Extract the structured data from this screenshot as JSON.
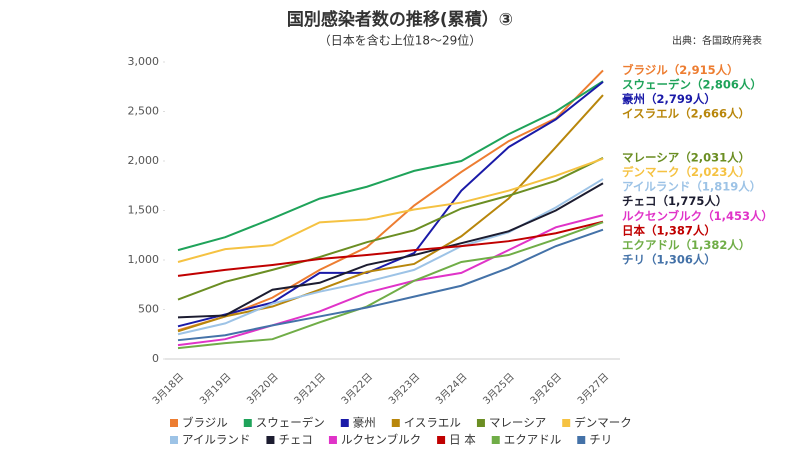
{
  "chart_data": {
    "type": "line",
    "title": "国別感染者数の推移(累積）③",
    "subtitle": "（日本を含む上位18～29位）",
    "source": "出典：各国政府発表",
    "categories": [
      "3月18日",
      "3月19日",
      "3月20日",
      "3月21日",
      "3月22日",
      "3月23日",
      "3月24日",
      "3月25日",
      "3月26日",
      "3月27日"
    ],
    "ylim": [
      0,
      3000
    ],
    "yticks": [
      0,
      500,
      {
        "value": 1000,
        "label": "1,000"
      },
      {
        "value": 1500,
        "label": "1,500"
      },
      {
        "value": 2000,
        "label": "2,000"
      },
      {
        "value": 2500,
        "label": "2,500"
      },
      {
        "value": 3000,
        "label": "3,000"
      }
    ],
    "grid": false,
    "series": [
      {
        "name": "ブラジル",
        "color": "#ed7d31",
        "end_label": "ブラジル（2,915人）",
        "values": [
          290,
          430,
          620,
          900,
          1130,
          1550,
          1890,
          2200,
          2430,
          2915
        ]
      },
      {
        "name": "スウェーデン",
        "color": "#1fa35a",
        "end_label": "スウェーデン（2,806人）",
        "values": [
          1100,
          1230,
          1420,
          1620,
          1740,
          1900,
          2000,
          2270,
          2500,
          2806
        ]
      },
      {
        "name": "豪州",
        "color": "#1a1aa8",
        "end_label": "豪州（2,799人）",
        "values": [
          330,
          450,
          570,
          870,
          870,
          1070,
          1700,
          2140,
          2420,
          2799
        ]
      },
      {
        "name": "イスラエル",
        "color": "#b8860b",
        "end_label": "イスラエル（2,666人）",
        "values": [
          280,
          430,
          530,
          700,
          880,
          960,
          1240,
          1620,
          2140,
          2666
        ]
      },
      {
        "name": "マレーシア",
        "color": "#6b8e23",
        "end_label": "マレーシア（2,031人）",
        "values": [
          600,
          780,
          900,
          1030,
          1180,
          1300,
          1520,
          1650,
          1800,
          2031
        ]
      },
      {
        "name": "デンマーク",
        "color": "#f5c242",
        "end_label": "デンマーク（2,023人）",
        "values": [
          980,
          1110,
          1150,
          1380,
          1410,
          1510,
          1580,
          1700,
          1850,
          2023
        ]
      },
      {
        "name": "アイルランド",
        "color": "#9dc3e6",
        "end_label": "アイルランド（1,819人）",
        "values": [
          250,
          360,
          560,
          680,
          780,
          900,
          1140,
          1280,
          1530,
          1819
        ]
      },
      {
        "name": "チェコ",
        "color": "#1c1c30",
        "end_label": "チェコ（1,775人）",
        "values": [
          420,
          440,
          700,
          770,
          950,
          1050,
          1170,
          1290,
          1500,
          1775
        ]
      },
      {
        "name": "ルクセンブルク",
        "color": "#e033c8",
        "end_label": "ルクセンブルク（1,453人）",
        "values": [
          140,
          200,
          340,
          480,
          670,
          790,
          870,
          1100,
          1330,
          1453
        ]
      },
      {
        "name": "日 本",
        "color": "#c00000",
        "end_label": "日本（1,387人）",
        "values": [
          840,
          900,
          950,
          1010,
          1050,
          1100,
          1140,
          1190,
          1270,
          1387
        ]
      },
      {
        "name": "エクアドル",
        "color": "#70ad47",
        "end_label": "エクアドル（1,382人）",
        "values": [
          110,
          160,
          200,
          370,
          530,
          790,
          980,
          1050,
          1210,
          1382
        ]
      },
      {
        "name": "チリ",
        "color": "#4472a8",
        "end_label": "チリ（1,306人）",
        "values": [
          190,
          240,
          340,
          430,
          520,
          630,
          740,
          920,
          1140,
          1306
        ]
      }
    ]
  }
}
